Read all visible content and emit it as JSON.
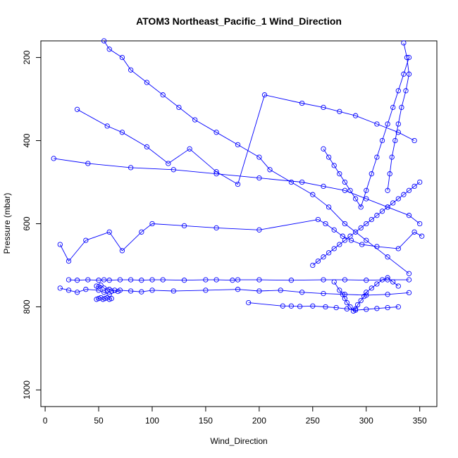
{
  "chart_data": {
    "type": "scatter",
    "title": "ATOM3 Northeast_Pacific_1 Wind_Direction",
    "xlabel": "Wind_Direction",
    "ylabel": "Pressure (mbar)",
    "xlim": [
      -4,
      366
    ],
    "ylim": [
      1040,
      160
    ],
    "y_reversed": true,
    "grid": false,
    "x_ticks": [
      0,
      50,
      100,
      150,
      200,
      250,
      300,
      350
    ],
    "x_tick_labels": [
      "0",
      "50",
      "100",
      "150",
      "200",
      "250",
      "300",
      "350"
    ],
    "y_ticks": [
      200,
      400,
      600,
      800,
      1000
    ],
    "y_tick_labels": [
      "200",
      "400",
      "600",
      "800",
      "1000"
    ],
    "marker": "open-circle",
    "color": "#0000ff",
    "series": [
      {
        "x": [
          55,
          60,
          72,
          80,
          95,
          110,
          125,
          140,
          160,
          180,
          200,
          210,
          230,
          250,
          265,
          280,
          300,
          320,
          340
        ],
        "y": [
          160,
          180,
          200,
          230,
          260,
          290,
          320,
          350,
          380,
          410,
          440,
          470,
          500,
          530,
          560,
          600,
          640,
          680,
          720
        ]
      },
      {
        "x": [
          30,
          58,
          72,
          95,
          115,
          135,
          160,
          180,
          205,
          240,
          260,
          275,
          290,
          310,
          330,
          345
        ],
        "y": [
          325,
          365,
          380,
          415,
          455,
          420,
          475,
          505,
          290,
          310,
          320,
          330,
          340,
          360,
          380,
          400
        ]
      },
      {
        "x": [
          8,
          40,
          80,
          120,
          160,
          200,
          240,
          260,
          280,
          300,
          320,
          340,
          350
        ],
        "y": [
          443,
          455,
          465,
          470,
          480,
          490,
          500,
          510,
          520,
          540,
          560,
          580,
          600
        ]
      },
      {
        "x": [
          14,
          22,
          38,
          60,
          72,
          90,
          100,
          130,
          160,
          200,
          255,
          262,
          270,
          278,
          286,
          296,
          310,
          330,
          345,
          352
        ],
        "y": [
          650,
          690,
          640,
          620,
          665,
          620,
          600,
          605,
          610,
          615,
          590,
          600,
          615,
          630,
          640,
          650,
          655,
          660,
          620,
          630
        ]
      },
      {
        "x": [
          14,
          22,
          30,
          38,
          50,
          55,
          60,
          70,
          80,
          90,
          100,
          120,
          150,
          180,
          200,
          220,
          240,
          260,
          280,
          300,
          320,
          340
        ],
        "y": [
          755,
          760,
          765,
          758,
          760,
          765,
          770,
          760,
          762,
          764,
          760,
          762,
          760,
          758,
          762,
          760,
          765,
          768,
          770,
          772,
          770,
          766
        ]
      },
      {
        "x": [
          22,
          30,
          40,
          50,
          55,
          60,
          70,
          80,
          90,
          100,
          110,
          130,
          150,
          160,
          175,
          180,
          200,
          230,
          260,
          280,
          300,
          320,
          340
        ],
        "y": [
          735,
          736,
          735,
          736,
          735,
          736,
          735,
          735,
          736,
          735,
          735,
          736,
          735,
          735,
          736,
          735,
          735,
          736,
          735,
          735,
          736,
          735,
          735
        ]
      },
      {
        "x": [
          48,
          50,
          52,
          54,
          56,
          58,
          60,
          62
        ],
        "y": [
          782,
          780,
          778,
          782,
          780,
          778,
          782,
          780
        ]
      },
      {
        "x": [
          190,
          222,
          230,
          238,
          250,
          262,
          272,
          282,
          290,
          300,
          310,
          320,
          330
        ],
        "y": [
          790,
          798,
          798,
          799,
          798,
          800,
          802,
          805,
          808,
          806,
          804,
          802,
          800
        ]
      },
      {
        "x": [
          270,
          275,
          278,
          280,
          282,
          285,
          288,
          290,
          292,
          295,
          298,
          300,
          305,
          310,
          315,
          320,
          325,
          330
        ],
        "y": [
          740,
          760,
          770,
          780,
          790,
          800,
          810,
          805,
          795,
          785,
          775,
          765,
          755,
          745,
          735,
          730,
          740,
          750
        ]
      },
      {
        "x": [
          250,
          255,
          260,
          265,
          270,
          275,
          280,
          285,
          290,
          295,
          300,
          305,
          310,
          315,
          320,
          325,
          330,
          335,
          340,
          345,
          350
        ],
        "y": [
          700,
          690,
          680,
          670,
          660,
          650,
          640,
          630,
          620,
          610,
          600,
          590,
          580,
          570,
          560,
          550,
          540,
          530,
          520,
          510,
          500
        ]
      },
      {
        "x": [
          260,
          265,
          270,
          275,
          280,
          285,
          290,
          295,
          300,
          305,
          310,
          315,
          320,
          325,
          330,
          335,
          340
        ],
        "y": [
          420,
          440,
          460,
          480,
          500,
          520,
          540,
          560,
          520,
          480,
          440,
          400,
          360,
          320,
          280,
          240,
          200
        ]
      },
      {
        "x": [
          335,
          338,
          340,
          337,
          333,
          330,
          327,
          324,
          322,
          320
        ],
        "y": [
          165,
          200,
          240,
          280,
          320,
          360,
          400,
          440,
          480,
          520
        ]
      },
      {
        "x": [
          48,
          50,
          52,
          55,
          58,
          60,
          62,
          65,
          68
        ],
        "y": [
          750,
          752,
          748,
          755,
          760,
          758,
          762,
          760,
          763
        ]
      }
    ]
  }
}
